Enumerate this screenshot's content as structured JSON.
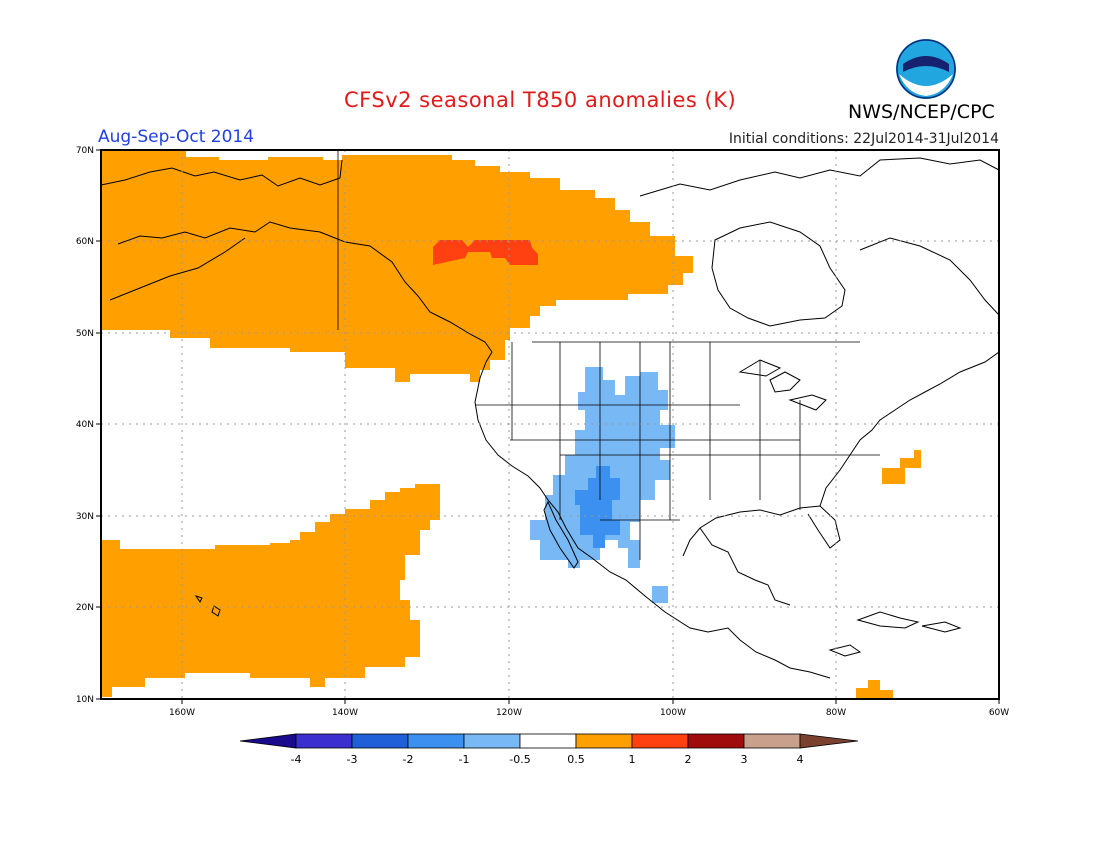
{
  "header": {
    "title": "CFSv2 seasonal T850 anomalies (K)",
    "agency": "NWS/NCEP/CPC",
    "period": "Aug-Sep-Oct 2014",
    "initial_conditions": "Initial conditions: 22Jul2014-31Jul2014",
    "logo_text": "NOAA"
  },
  "axes": {
    "lat_labels": [
      "70N",
      "60N",
      "50N",
      "40N",
      "30N",
      "20N",
      "10N"
    ],
    "lon_labels": [
      "160W",
      "140W",
      "120W",
      "100W",
      "80W",
      "60W"
    ]
  },
  "colorbar": {
    "labels": [
      "-4",
      "-3",
      "-2",
      "-1",
      "-0.5",
      "0.5",
      "1",
      "2",
      "3",
      "4"
    ],
    "colors": [
      "#1a0a8c",
      "#3b2fd0",
      "#1f60d8",
      "#3c90f0",
      "#78b8f5",
      "#ffffff",
      "#ffa000",
      "#ff4010",
      "#a00c0c",
      "#c8a08c",
      "#7a4030"
    ]
  },
  "map": {
    "ocean_land_background": "#ffffff",
    "positive_fill": "#ffa000",
    "strong_positive_fill": "#ff4010",
    "negative_fill": "#78b8f5",
    "stronger_negative_fill": "#3c90f0"
  }
}
